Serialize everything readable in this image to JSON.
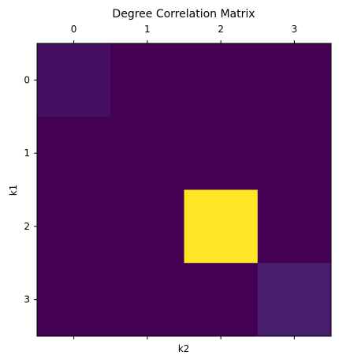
{
  "chart_data": {
    "type": "heatmap",
    "title": "Degree Correlation Matrix",
    "xlabel": "k2",
    "ylabel": "k1",
    "x_categories": [
      "0",
      "1",
      "2",
      "3"
    ],
    "y_categories": [
      "0",
      "1",
      "2",
      "3"
    ],
    "x_tick_position": "top",
    "colormap": "viridis",
    "values": [
      [
        0.04,
        0.0,
        0.0,
        0.0
      ],
      [
        0.0,
        0.0,
        0.0,
        0.0
      ],
      [
        0.0,
        0.0,
        1.0,
        0.0
      ],
      [
        0.0,
        0.0,
        0.0,
        0.08
      ]
    ],
    "grid": false,
    "legend": "none"
  }
}
